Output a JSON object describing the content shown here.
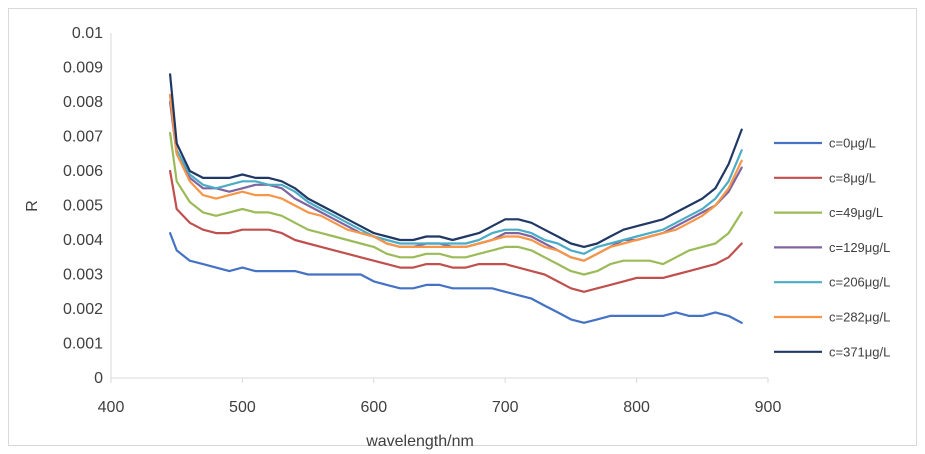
{
  "chart_data": {
    "type": "line",
    "title": "",
    "xlabel": "wavelength/nm",
    "ylabel": "R",
    "xlim": [
      400,
      900
    ],
    "ylim": [
      0,
      0.01
    ],
    "x_ticks": [
      "400",
      "500",
      "600",
      "700",
      "800",
      "900"
    ],
    "y_ticks": [
      "0",
      "0.001",
      "0.002",
      "0.003",
      "0.004",
      "0.005",
      "0.006",
      "0.007",
      "0.008",
      "0.009",
      "0.01"
    ],
    "grid": false,
    "legend_position": "right",
    "x": [
      445,
      450,
      460,
      470,
      480,
      490,
      500,
      510,
      520,
      530,
      540,
      550,
      560,
      570,
      580,
      590,
      600,
      610,
      620,
      630,
      640,
      650,
      660,
      670,
      680,
      690,
      700,
      710,
      720,
      730,
      740,
      750,
      760,
      770,
      780,
      790,
      800,
      810,
      820,
      830,
      840,
      850,
      860,
      870,
      880
    ],
    "series": [
      {
        "name": "c=0μg/L",
        "color": "#4472c4",
        "values": [
          0.0042,
          0.0037,
          0.0034,
          0.0033,
          0.0032,
          0.0031,
          0.0032,
          0.0031,
          0.0031,
          0.0031,
          0.0031,
          0.003,
          0.003,
          0.003,
          0.003,
          0.003,
          0.0028,
          0.0027,
          0.0026,
          0.0026,
          0.0027,
          0.0027,
          0.0026,
          0.0026,
          0.0026,
          0.0026,
          0.0025,
          0.0024,
          0.0023,
          0.0021,
          0.0019,
          0.0017,
          0.0016,
          0.0017,
          0.0018,
          0.0018,
          0.0018,
          0.0018,
          0.0018,
          0.0019,
          0.0018,
          0.0018,
          0.0019,
          0.0018,
          0.0016
        ]
      },
      {
        "name": "c=8μg/L",
        "color": "#c0504d",
        "values": [
          0.006,
          0.0049,
          0.0045,
          0.0043,
          0.0042,
          0.0042,
          0.0043,
          0.0043,
          0.0043,
          0.0042,
          0.004,
          0.0039,
          0.0038,
          0.0037,
          0.0036,
          0.0035,
          0.0034,
          0.0033,
          0.0032,
          0.0032,
          0.0033,
          0.0033,
          0.0032,
          0.0032,
          0.0033,
          0.0033,
          0.0033,
          0.0032,
          0.0031,
          0.003,
          0.0028,
          0.0026,
          0.0025,
          0.0026,
          0.0027,
          0.0028,
          0.0029,
          0.0029,
          0.0029,
          0.003,
          0.0031,
          0.0032,
          0.0033,
          0.0035,
          0.0039
        ]
      },
      {
        "name": "c=49μg/L",
        "color": "#9bbb59",
        "values": [
          0.0071,
          0.0057,
          0.0051,
          0.0048,
          0.0047,
          0.0048,
          0.0049,
          0.0048,
          0.0048,
          0.0047,
          0.0045,
          0.0043,
          0.0042,
          0.0041,
          0.004,
          0.0039,
          0.0038,
          0.0036,
          0.0035,
          0.0035,
          0.0036,
          0.0036,
          0.0035,
          0.0035,
          0.0036,
          0.0037,
          0.0038,
          0.0038,
          0.0037,
          0.0035,
          0.0033,
          0.0031,
          0.003,
          0.0031,
          0.0033,
          0.0034,
          0.0034,
          0.0034,
          0.0033,
          0.0035,
          0.0037,
          0.0038,
          0.0039,
          0.0042,
          0.0048
        ]
      },
      {
        "name": "c=129μg/L",
        "color": "#8064a2",
        "values": [
          0.008,
          0.0065,
          0.0058,
          0.0055,
          0.0055,
          0.0054,
          0.0055,
          0.0056,
          0.0056,
          0.0055,
          0.0052,
          0.005,
          0.0048,
          0.0046,
          0.0044,
          0.0042,
          0.0041,
          0.0039,
          0.0038,
          0.0038,
          0.0039,
          0.0039,
          0.0038,
          0.0038,
          0.0039,
          0.004,
          0.0042,
          0.0042,
          0.0041,
          0.0039,
          0.0037,
          0.0035,
          0.0034,
          0.0036,
          0.0038,
          0.004,
          0.004,
          0.0041,
          0.0042,
          0.0044,
          0.0046,
          0.0048,
          0.005,
          0.0054,
          0.0061
        ]
      },
      {
        "name": "c=206μg/L",
        "color": "#4bacc6",
        "values": [
          0.0082,
          0.0066,
          0.0059,
          0.0056,
          0.0055,
          0.0056,
          0.0057,
          0.0057,
          0.0056,
          0.0056,
          0.0054,
          0.0051,
          0.0049,
          0.0047,
          0.0045,
          0.0043,
          0.0041,
          0.004,
          0.0039,
          0.0039,
          0.0039,
          0.0039,
          0.0039,
          0.0039,
          0.004,
          0.0042,
          0.0043,
          0.0043,
          0.0042,
          0.004,
          0.0039,
          0.0037,
          0.0036,
          0.0038,
          0.0039,
          0.004,
          0.0041,
          0.0042,
          0.0043,
          0.0045,
          0.0047,
          0.0049,
          0.0052,
          0.0057,
          0.0066
        ]
      },
      {
        "name": "c=282μg/L",
        "color": "#f79646",
        "values": [
          0.0082,
          0.0065,
          0.0057,
          0.0053,
          0.0052,
          0.0053,
          0.0054,
          0.0053,
          0.0053,
          0.0052,
          0.005,
          0.0048,
          0.0047,
          0.0045,
          0.0043,
          0.0042,
          0.0041,
          0.0039,
          0.0038,
          0.0038,
          0.0038,
          0.0038,
          0.0038,
          0.0038,
          0.0039,
          0.004,
          0.0041,
          0.0041,
          0.004,
          0.0038,
          0.0037,
          0.0035,
          0.0034,
          0.0036,
          0.0038,
          0.0039,
          0.004,
          0.0041,
          0.0042,
          0.0043,
          0.0045,
          0.0047,
          0.005,
          0.0055,
          0.0063
        ]
      },
      {
        "name": "c=371μg/L",
        "color": "#1f3864",
        "values": [
          0.0088,
          0.0068,
          0.006,
          0.0058,
          0.0058,
          0.0058,
          0.0059,
          0.0058,
          0.0058,
          0.0057,
          0.0055,
          0.0052,
          0.005,
          0.0048,
          0.0046,
          0.0044,
          0.0042,
          0.0041,
          0.004,
          0.004,
          0.0041,
          0.0041,
          0.004,
          0.0041,
          0.0042,
          0.0044,
          0.0046,
          0.0046,
          0.0045,
          0.0043,
          0.0041,
          0.0039,
          0.0038,
          0.0039,
          0.0041,
          0.0043,
          0.0044,
          0.0045,
          0.0046,
          0.0048,
          0.005,
          0.0052,
          0.0055,
          0.0062,
          0.0072
        ]
      }
    ]
  }
}
